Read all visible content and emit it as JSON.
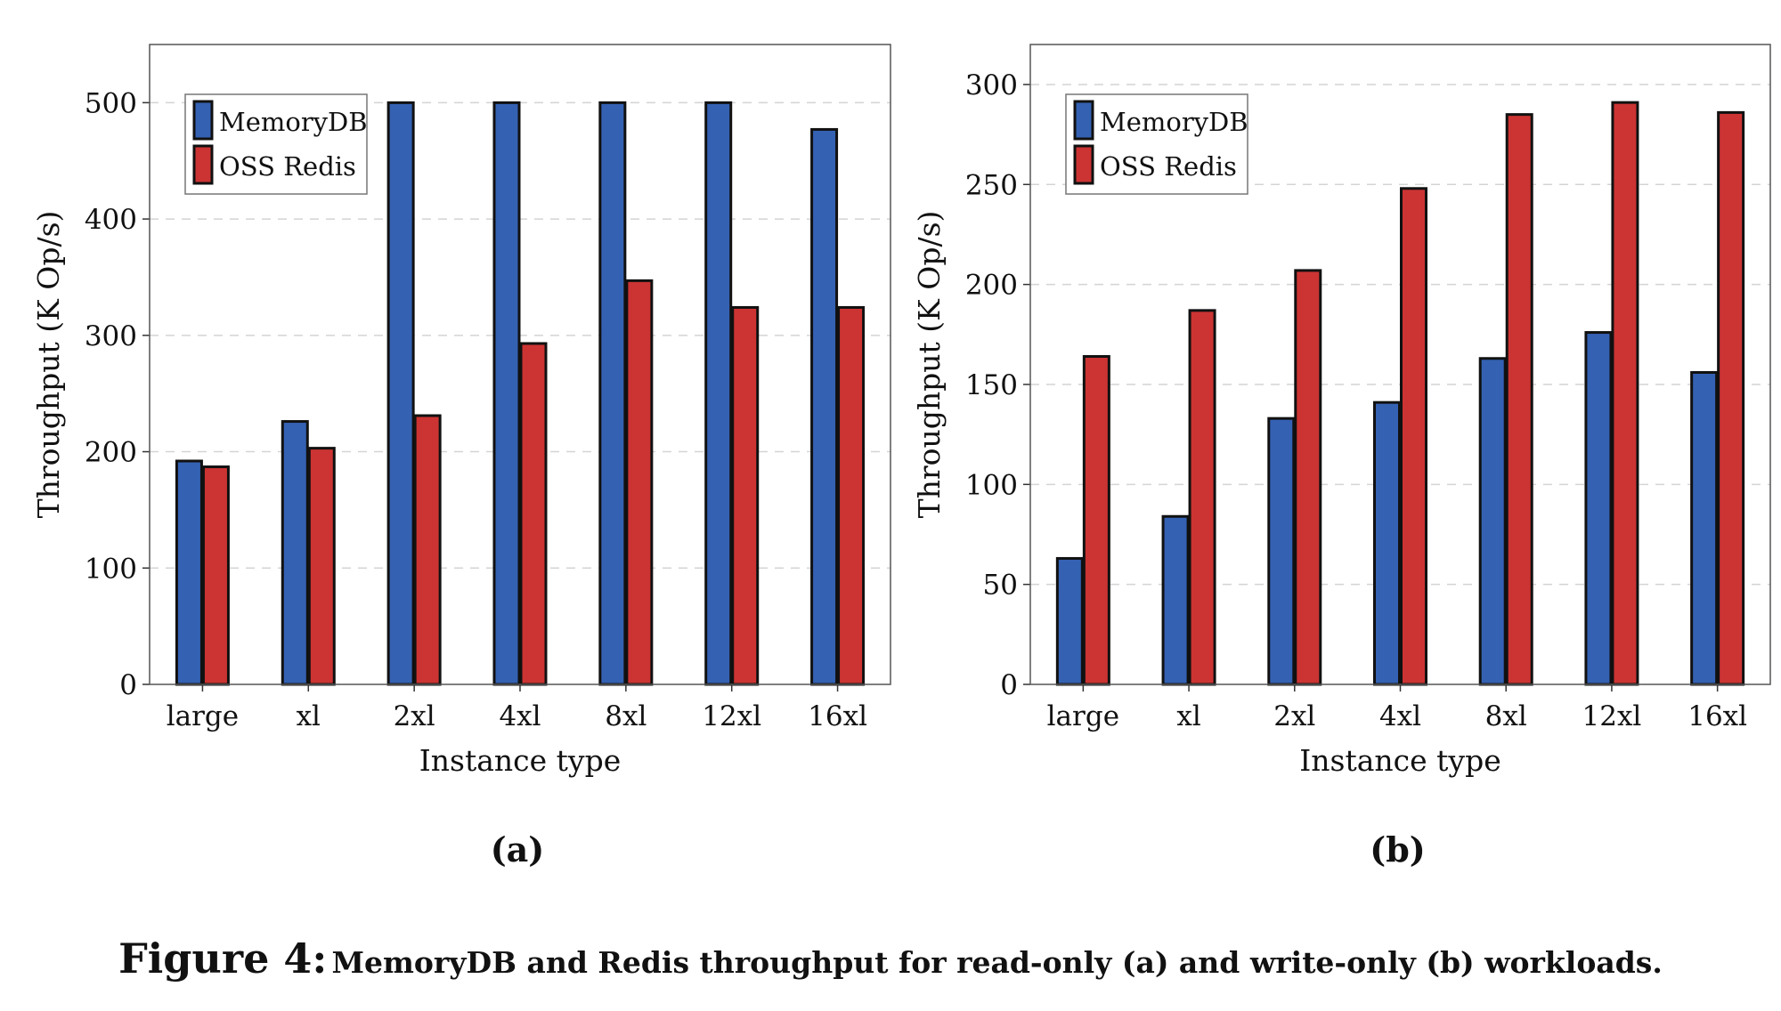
{
  "colors": {
    "memorydb": "#3461b2",
    "redis": "#cb3433"
  },
  "chart_data": [
    {
      "type": "bar",
      "panel_label": "(a)",
      "categories": [
        "large",
        "xl",
        "2xl",
        "4xl",
        "8xl",
        "12xl",
        "16xl"
      ],
      "series": [
        {
          "name": "MemoryDB",
          "values": [
            192,
            226,
            500,
            500,
            500,
            500,
            477
          ]
        },
        {
          "name": "OSS Redis",
          "values": [
            187,
            203,
            231,
            293,
            347,
            324,
            324
          ]
        }
      ],
      "title": "",
      "xlabel": "Instance type",
      "ylabel": "Throughput (K Op/s)",
      "ylim": [
        0,
        550
      ],
      "yticks": [
        0,
        100,
        200,
        300,
        400,
        500
      ],
      "grid": "horizontal-dashed",
      "legend_position": "top-left"
    },
    {
      "type": "bar",
      "panel_label": "(b)",
      "categories": [
        "large",
        "xl",
        "2xl",
        "4xl",
        "8xl",
        "12xl",
        "16xl"
      ],
      "series": [
        {
          "name": "MemoryDB",
          "values": [
            63,
            84,
            133,
            141,
            163,
            176,
            156
          ]
        },
        {
          "name": "OSS Redis",
          "values": [
            164,
            187,
            207,
            248,
            285,
            291,
            286
          ]
        }
      ],
      "title": "",
      "xlabel": "Instance type",
      "ylabel": "Throughput (K Op/s)",
      "ylim": [
        0,
        320
      ],
      "yticks": [
        0,
        50,
        100,
        150,
        200,
        250,
        300
      ],
      "grid": "horizontal-dashed",
      "legend_position": "top-left"
    }
  ],
  "caption": {
    "label": "Figure 4:",
    "text": "MemoryDB and Redis throughput for read-only (a) and write-only (b) workloads."
  }
}
